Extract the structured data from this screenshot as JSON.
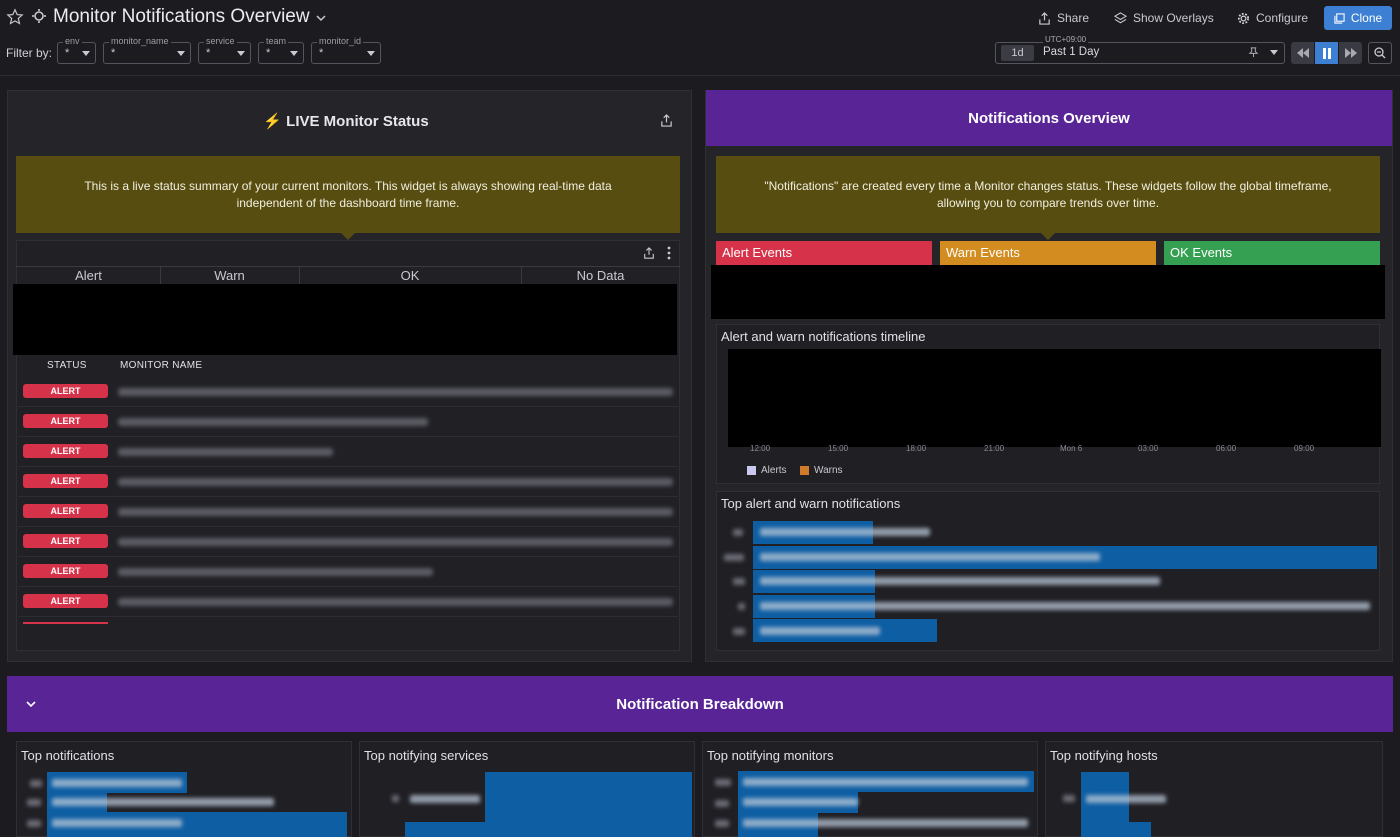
{
  "header": {
    "title": "Monitor Notifications Overview",
    "actions": {
      "share": "Share",
      "overlays": "Show Overlays",
      "configure": "Configure",
      "clone": "Clone"
    },
    "filter_label": "Filter by:",
    "filters": [
      {
        "name": "env",
        "value": "*"
      },
      {
        "name": "monitor_name",
        "value": "*"
      },
      {
        "name": "service",
        "value": "*"
      },
      {
        "name": "team",
        "value": "*"
      },
      {
        "name": "monitor_id",
        "value": "*"
      }
    ],
    "time": {
      "timezone": "UTC+09:00",
      "chip": "1d",
      "label": "Past 1 Day"
    }
  },
  "live_panel": {
    "title": "⚡ LIVE Monitor Status",
    "note": "This is a live status summary of your current monitors. This widget is always showing real-time data independent of the dashboard time frame.",
    "status_columns": [
      "Alert",
      "Warn",
      "OK",
      "No Data"
    ],
    "table_headers": {
      "status": "STATUS",
      "name": "MONITOR NAME"
    },
    "rows": [
      {
        "status": "ALERT"
      },
      {
        "status": "ALERT"
      },
      {
        "status": "ALERT"
      },
      {
        "status": "ALERT"
      },
      {
        "status": "ALERT"
      },
      {
        "status": "ALERT"
      },
      {
        "status": "ALERT"
      },
      {
        "status": "ALERT"
      }
    ]
  },
  "notifications_panel": {
    "title": "Notifications Overview",
    "note": "\"Notifications\" are created every time a Monitor changes status. These widgets follow the global timeframe, allowing you to compare trends over time.",
    "events": [
      {
        "label": "Alert Events",
        "color": "#d6334a"
      },
      {
        "label": "Warn Events",
        "color": "#d38c1f"
      },
      {
        "label": "OK Events",
        "color": "#35a052"
      }
    ],
    "timeline": {
      "title": "Alert and warn notifications timeline",
      "legend": [
        {
          "label": "Alerts",
          "color": "#c9c9f0"
        },
        {
          "label": "Warns",
          "color": "#d07a2c"
        }
      ]
    },
    "top_list": {
      "title": "Top alert and warn notifications"
    }
  },
  "breakdown": {
    "title": "Notification Breakdown",
    "widgets": [
      {
        "title": "Top notifications"
      },
      {
        "title": "Top notifying services"
      },
      {
        "title": "Top notifying monitors"
      },
      {
        "title": "Top notifying hosts"
      }
    ]
  },
  "colors": {
    "accent": "#3d7fd3",
    "purple": "#582496",
    "note_yellow": "#584d10",
    "alert": "#d6334a",
    "bar_blue": "#0e5ea3"
  }
}
